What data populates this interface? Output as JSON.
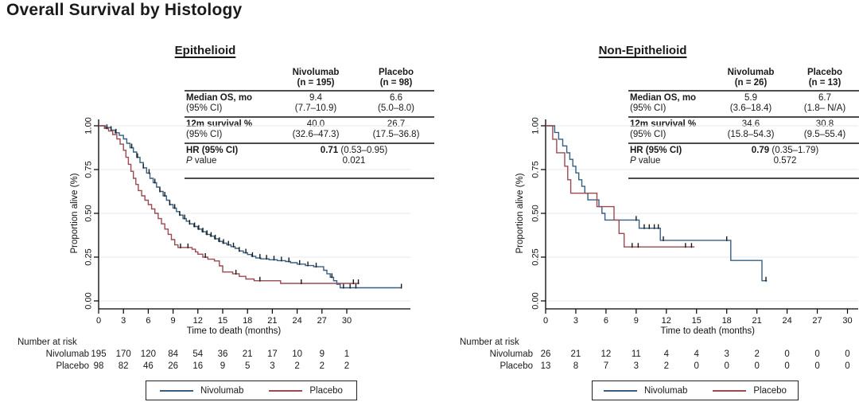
{
  "page_title": "Overall Survival by Histology",
  "colors": {
    "nivolumab": "#365f82",
    "placebo": "#9c4a52",
    "grid": "#e4eaef",
    "axis": "#000000",
    "censor": "#1a1a1a",
    "table_rule": "#4d4d4d"
  },
  "panels": [
    {
      "title": "Epithelioid",
      "table": {
        "header": {
          "niv1": "Nivolumab",
          "niv2": "(n = 195)",
          "pla1": "Placebo",
          "pla2": "(n = 98)"
        },
        "r1": {
          "l1": "Median OS, mo",
          "l2": "(95% CI)",
          "n1": "9.4",
          "n2": "(7.7–10.9)",
          "p1": "6.6",
          "p2": "(5.0–8.0)"
        },
        "r2": {
          "l1": "12m survival %",
          "l2": "(95% CI)",
          "n1": "40.0",
          "n2": "(32.6–47.3)",
          "p1": "26.7",
          "p2": "(17.5–36.8)"
        },
        "r3": {
          "l1": "HR (95% CI)",
          "p_it": "P",
          "p_lb": " value",
          "hr_bold": "0.71",
          "hr_rest": " (0.53–0.95)",
          "p": "0.021"
        }
      },
      "number_at_risk": {
        "heading": "Number at risk",
        "rows": [
          {
            "label": "Nivolumab",
            "values": [
              "195",
              "170",
              "120",
              "84",
              "54",
              "36",
              "21",
              "17",
              "10",
              "9",
              "1"
            ]
          },
          {
            "label": "Placebo",
            "values": [
              "98",
              "82",
              "46",
              "26",
              "16",
              "9",
              "5",
              "3",
              "2",
              "2",
              "2"
            ]
          }
        ]
      },
      "legend": {
        "niv": "Nivolumab",
        "pla": "Placebo"
      }
    },
    {
      "title": "Non-Epithelioid",
      "table": {
        "header": {
          "niv1": "Nivolumab",
          "niv2": "(n = 26)",
          "pla1": "Placebo",
          "pla2": "(n = 13)"
        },
        "r1": {
          "l1": "Median OS, mo",
          "l2": "(95% CI)",
          "n1": "5.9",
          "n2": "(3.6–18.4)",
          "p1": "6.7",
          "p2": "(1.8– N/A)"
        },
        "r2": {
          "l1": "12m survival %",
          "l2": "(95% CI)",
          "n1": "34.6",
          "n2": "(15.8–54.3)",
          "p1": "30.8",
          "p2": "(9.5–55.4)"
        },
        "r3": {
          "l1": "HR (95% CI)",
          "p_it": "P",
          "p_lb": " value",
          "hr_bold": "0.79",
          "hr_rest": " (0.35–1.79)",
          "p": "0.572"
        }
      },
      "number_at_risk": {
        "heading": "Number at risk",
        "rows": [
          {
            "label": "Nivolumab",
            "values": [
              "26",
              "21",
              "12",
              "11",
              "4",
              "4",
              "3",
              "2",
              "0",
              "0",
              "0"
            ]
          },
          {
            "label": "Placebo",
            "values": [
              "13",
              "8",
              "7",
              "3",
              "2",
              "0",
              "0",
              "0",
              "0",
              "0",
              "0"
            ]
          }
        ]
      },
      "legend": {
        "niv": "Nivolumab",
        "pla": "Placebo"
      }
    }
  ],
  "chart_data": [
    {
      "type": "line",
      "subtype": "kaplan-meier-step",
      "title": "Epithelioid",
      "xlabel": "Time to death (months)",
      "ylabel": "Proportion alive (%)",
      "xticks": [
        0,
        3,
        6,
        9,
        12,
        15,
        18,
        21,
        24,
        27,
        30
      ],
      "ytick_labels": [
        "0.00",
        "0.25",
        "0.50",
        "0.75",
        "1.00"
      ],
      "xlim": [
        0,
        37.5
      ],
      "ylim": [
        0,
        1.0
      ],
      "grid": "horizontal",
      "legend_position": "bottom",
      "series": [
        {
          "name": "Nivolumab",
          "color": "#365f82",
          "steps": [
            [
              0,
              1.0
            ],
            [
              0.8,
              0.99
            ],
            [
              1.5,
              0.975
            ],
            [
              2.0,
              0.96
            ],
            [
              2.5,
              0.945
            ],
            [
              3.0,
              0.925
            ],
            [
              3.4,
              0.9
            ],
            [
              3.8,
              0.875
            ],
            [
              4.2,
              0.85
            ],
            [
              4.6,
              0.82
            ],
            [
              5.0,
              0.79
            ],
            [
              5.4,
              0.76
            ],
            [
              5.8,
              0.73
            ],
            [
              6.2,
              0.7
            ],
            [
              6.6,
              0.675
            ],
            [
              7.0,
              0.65
            ],
            [
              7.4,
              0.625
            ],
            [
              7.8,
              0.6
            ],
            [
              8.2,
              0.575
            ],
            [
              8.6,
              0.55
            ],
            [
              9.0,
              0.53
            ],
            [
              9.4,
              0.51
            ],
            [
              9.8,
              0.49
            ],
            [
              10.2,
              0.47
            ],
            [
              10.6,
              0.455
            ],
            [
              11.0,
              0.44
            ],
            [
              11.5,
              0.425
            ],
            [
              12.0,
              0.41
            ],
            [
              12.5,
              0.395
            ],
            [
              13.0,
              0.38
            ],
            [
              13.5,
              0.37
            ],
            [
              14.0,
              0.355
            ],
            [
              14.5,
              0.34
            ],
            [
              15.0,
              0.33
            ],
            [
              15.5,
              0.32
            ],
            [
              16.0,
              0.31
            ],
            [
              16.5,
              0.3
            ],
            [
              17.0,
              0.285
            ],
            [
              17.5,
              0.275
            ],
            [
              18.0,
              0.265
            ],
            [
              18.5,
              0.255
            ],
            [
              19.0,
              0.245
            ],
            [
              19.6,
              0.24
            ],
            [
              20.6,
              0.235
            ],
            [
              21.6,
              0.23
            ],
            [
              22.6,
              0.225
            ],
            [
              23.2,
              0.218
            ],
            [
              24.0,
              0.21
            ],
            [
              25.0,
              0.202
            ],
            [
              26.0,
              0.195
            ],
            [
              27.2,
              0.175
            ],
            [
              27.6,
              0.155
            ],
            [
              28.0,
              0.135
            ],
            [
              28.4,
              0.115
            ],
            [
              28.8,
              0.095
            ],
            [
              29.2,
              0.075
            ],
            [
              36.6,
              0.075
            ]
          ],
          "censors": [
            1.5,
            2.1,
            4.0,
            4.7,
            5.4,
            6.1,
            6.8,
            7.4,
            8.0,
            8.6,
            9.2,
            9.8,
            10.4,
            11.0,
            11.6,
            12.1,
            12.6,
            13.1,
            13.6,
            14.1,
            14.6,
            15.1,
            15.7,
            16.3,
            17.0,
            17.8,
            18.6,
            19.5,
            20.3,
            21.2,
            22.1,
            23.0,
            24.3,
            25.3,
            26.3,
            28.2,
            29.6,
            30.4,
            31.1,
            36.6
          ]
        },
        {
          "name": "Placebo",
          "color": "#9c4a52",
          "steps": [
            [
              0,
              1.0
            ],
            [
              0.7,
              0.985
            ],
            [
              1.2,
              0.97
            ],
            [
              1.7,
              0.95
            ],
            [
              2.2,
              0.925
            ],
            [
              2.6,
              0.895
            ],
            [
              3.0,
              0.86
            ],
            [
              3.3,
              0.82
            ],
            [
              3.6,
              0.78
            ],
            [
              3.9,
              0.74
            ],
            [
              4.2,
              0.7
            ],
            [
              4.5,
              0.665
            ],
            [
              4.8,
              0.63
            ],
            [
              5.2,
              0.6
            ],
            [
              5.6,
              0.575
            ],
            [
              6.0,
              0.55
            ],
            [
              6.4,
              0.525
            ],
            [
              6.8,
              0.5
            ],
            [
              7.2,
              0.47
            ],
            [
              7.6,
              0.44
            ],
            [
              8.0,
              0.41
            ],
            [
              8.4,
              0.38
            ],
            [
              8.8,
              0.35
            ],
            [
              9.2,
              0.32
            ],
            [
              9.6,
              0.305
            ],
            [
              11.3,
              0.295
            ],
            [
              11.7,
              0.28
            ],
            [
              12.0,
              0.267
            ],
            [
              12.6,
              0.25
            ],
            [
              13.2,
              0.238
            ],
            [
              14.0,
              0.228
            ],
            [
              14.6,
              0.2
            ],
            [
              15.0,
              0.165
            ],
            [
              16.2,
              0.155
            ],
            [
              17.0,
              0.14
            ],
            [
              17.8,
              0.125
            ],
            [
              18.8,
              0.115
            ],
            [
              22.0,
              0.1
            ],
            [
              31.5,
              0.1
            ]
          ],
          "censors": [
            1.0,
            9.9,
            10.8,
            12.9,
            16.6,
            19.5,
            24.5,
            30.8,
            31.4
          ]
        }
      ]
    },
    {
      "type": "line",
      "subtype": "kaplan-meier-step",
      "title": "Non-Epithelioid",
      "xlabel": "Time to death (months)",
      "ylabel": "Proportion alive (%)",
      "xticks": [
        0,
        3,
        6,
        9,
        12,
        15,
        18,
        21,
        24,
        27,
        30
      ],
      "ytick_labels": [
        "0.00",
        "0.25",
        "0.50",
        "0.75",
        "1.00"
      ],
      "xlim": [
        0,
        31
      ],
      "ylim": [
        0,
        1.0
      ],
      "grid": "horizontal",
      "legend_position": "bottom",
      "series": [
        {
          "name": "Nivolumab",
          "color": "#365f82",
          "steps": [
            [
              0,
              1.0
            ],
            [
              0.9,
              0.962
            ],
            [
              1.3,
              0.923
            ],
            [
              1.7,
              0.885
            ],
            [
              2.1,
              0.846
            ],
            [
              2.4,
              0.808
            ],
            [
              2.7,
              0.769
            ],
            [
              3.0,
              0.731
            ],
            [
              3.3,
              0.692
            ],
            [
              3.6,
              0.654
            ],
            [
              3.9,
              0.615
            ],
            [
              4.2,
              0.577
            ],
            [
              5.3,
              0.538
            ],
            [
              5.6,
              0.5
            ],
            [
              5.9,
              0.462
            ],
            [
              9.3,
              0.415
            ],
            [
              11.4,
              0.346
            ],
            [
              18.4,
              0.231
            ],
            [
              21.5,
              0.115
            ],
            [
              22.0,
              0.115
            ]
          ],
          "censors": [
            9.0,
            9.8,
            10.3,
            10.8,
            11.2,
            11.7,
            18.0,
            21.9
          ]
        },
        {
          "name": "Placebo",
          "color": "#9c4a52",
          "steps": [
            [
              0,
              1.0
            ],
            [
              0.7,
              0.923
            ],
            [
              1.1,
              0.846
            ],
            [
              1.9,
              0.769
            ],
            [
              2.2,
              0.692
            ],
            [
              2.5,
              0.615
            ],
            [
              5.1,
              0.538
            ],
            [
              6.8,
              0.462
            ],
            [
              7.3,
              0.385
            ],
            [
              7.8,
              0.308
            ],
            [
              14.8,
              0.308
            ]
          ],
          "censors": [
            8.6,
            9.2,
            13.9,
            14.5
          ]
        }
      ]
    }
  ]
}
